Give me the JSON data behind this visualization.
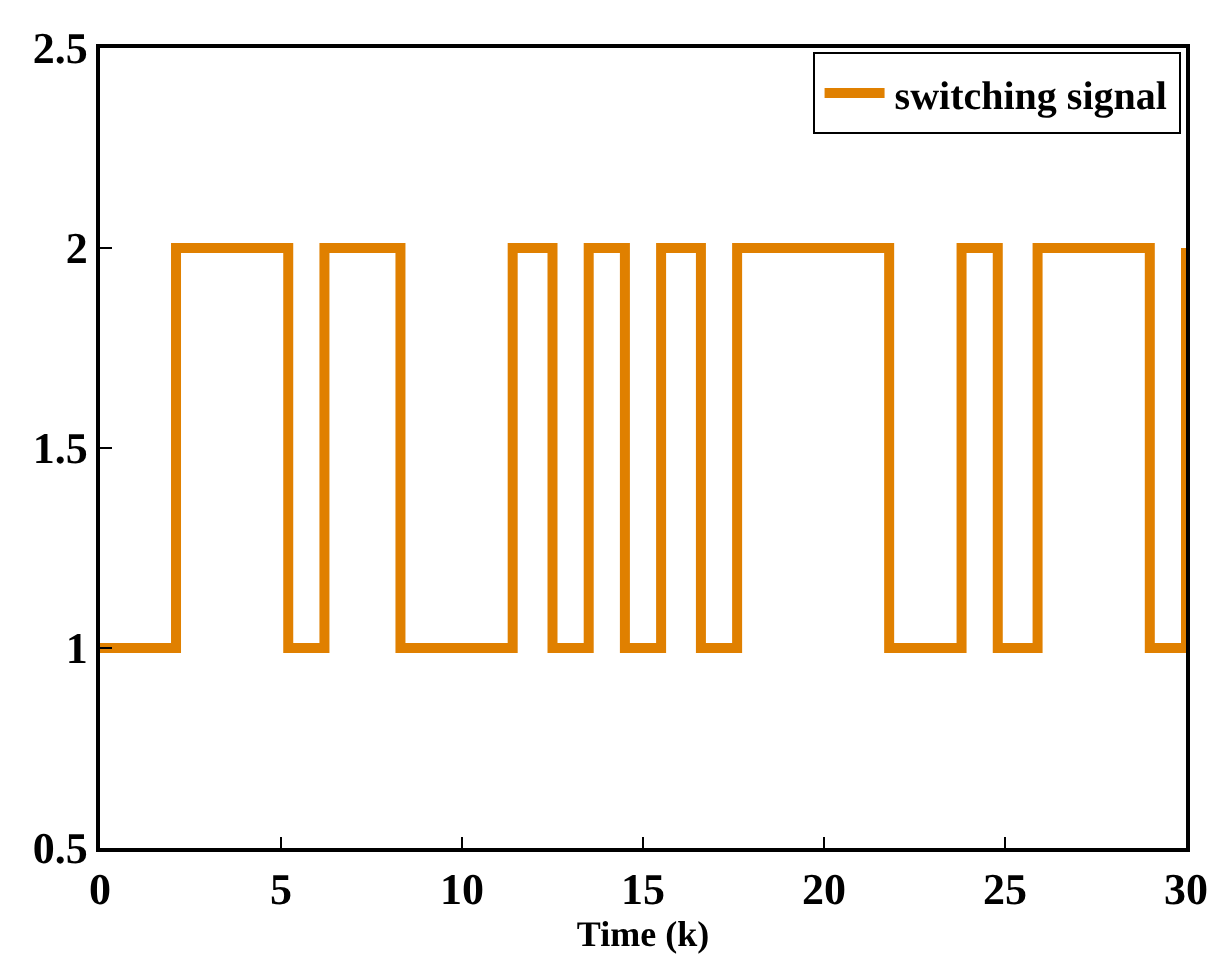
{
  "chart_data": {
    "type": "step",
    "xlabel": "Time (k)",
    "x": [
      0,
      2.1,
      5.2,
      6.2,
      8.3,
      11.4,
      12.5,
      13.5,
      14.5,
      15.5,
      16.6,
      17.6,
      21.8,
      23.8,
      24.8,
      25.9,
      29.0,
      30
    ],
    "series": [
      {
        "name": "switching signal",
        "color": "#e08000",
        "values": [
          1,
          2,
          1,
          2,
          1,
          2,
          1,
          2,
          1,
          2,
          1,
          2,
          1,
          2,
          1,
          2,
          1,
          2
        ]
      }
    ],
    "xlim": [
      0,
      30
    ],
    "xticks": [
      0,
      5,
      10,
      15,
      20,
      25,
      30
    ],
    "ylim": [
      0.5,
      2.5
    ],
    "yticks": [
      0.5,
      1,
      1.5,
      2,
      2.5
    ],
    "legend": "top right",
    "line_style": "solid",
    "marker": "none"
  }
}
